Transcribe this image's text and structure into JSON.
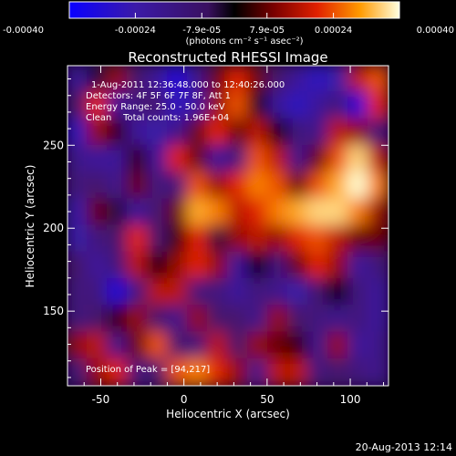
{
  "chart_data": {
    "type": "heatmap",
    "title": "Reconstructed RHESSI Image",
    "xlabel": "Heliocentric X (arcsec)",
    "ylabel": "Heliocentric Y (arcsec)",
    "xlim": [
      -70,
      123
    ],
    "ylim": [
      105,
      298
    ],
    "x_ticks": [
      -50,
      0,
      50,
      100
    ],
    "y_ticks": [
      150,
      200,
      250
    ],
    "colorbar": {
      "unit_label": "(photons cm⁻² s⁻¹ asec⁻²)",
      "range": [
        -0.0004,
        0.0004
      ],
      "tick_labels": [
        "-0.00040",
        "-0.00024",
        "-7.9e-05",
        "7.9e-05",
        "0.00024",
        "0.00040"
      ]
    },
    "annotations": [
      "1-Aug-2011 12:36:48.000 to 12:40:26.000",
      "Detectors: 4F 5F 6F 7F 8F, Att 1",
      "Energy Range: 25.0 - 50.0 keV",
      "Clean    Total counts: 1.96E+04"
    ],
    "peak_label": "Position of Peak = [94,217]",
    "peak": [
      94,
      217
    ],
    "map_values": [
      [
        -0.5,
        -0.1,
        0.3,
        -0.2,
        -0.5,
        -0.8,
        -0.4,
        0.2,
        0.5,
        0.2,
        -0.2,
        -0.5,
        -0.7,
        -0.6,
        0.4,
        0.6
      ],
      [
        -0.2,
        0.5,
        -0.5,
        -0.3,
        -0.2,
        -0.7,
        -0.5,
        0.3,
        0.6,
        0.0,
        -0.5,
        -0.7,
        -0.5,
        -0.3,
        -0.8,
        0.5
      ],
      [
        -0.7,
        0.3,
        0.1,
        -0.5,
        -0.6,
        -0.4,
        0.2,
        0.5,
        0.2,
        0.4,
        0.0,
        -0.3,
        -0.4,
        0.4,
        0.3,
        -0.3
      ],
      [
        -0.4,
        -0.5,
        -0.5,
        0.1,
        -0.5,
        0.5,
        0.2,
        -0.5,
        -0.3,
        0.6,
        0.4,
        -0.4,
        0.2,
        0.6,
        0.9,
        0.4
      ],
      [
        -0.3,
        -0.2,
        -0.4,
        0.2,
        -0.3,
        -0.3,
        0.6,
        0.3,
        0.5,
        0.7,
        0.6,
        0.2,
        0.6,
        0.8,
        1.0,
        0.7
      ],
      [
        -0.6,
        0.2,
        -0.1,
        -0.5,
        -0.2,
        0.2,
        0.8,
        0.7,
        0.4,
        0.5,
        0.7,
        0.8,
        0.9,
        0.9,
        0.7,
        0.3
      ],
      [
        -0.6,
        -0.3,
        -0.2,
        0.5,
        -0.2,
        0.1,
        0.5,
        -0.1,
        0.3,
        0.4,
        0.3,
        0.5,
        0.6,
        0.4,
        0.2,
        0.2
      ],
      [
        -0.2,
        -0.5,
        -0.3,
        0.4,
        0.0,
        0.3,
        0.5,
        0.3,
        -0.5,
        0.0,
        -0.3,
        0.2,
        0.5,
        0.3,
        -0.5,
        -0.3
      ],
      [
        -0.3,
        -0.3,
        -0.8,
        -0.3,
        0.4,
        0.4,
        -0.3,
        -0.3,
        -0.5,
        -0.3,
        -0.4,
        -0.6,
        -0.2,
        0.0,
        -0.3,
        -0.5
      ],
      [
        -0.3,
        -0.2,
        0.1,
        0.3,
        -0.2,
        -0.4,
        0.3,
        -0.2,
        -0.2,
        -0.4,
        0.3,
        -0.2,
        -0.3,
        -0.4,
        -0.3,
        -0.5
      ],
      [
        0.3,
        0.4,
        -0.4,
        0.2,
        0.6,
        -0.2,
        -0.3,
        0.4,
        -0.2,
        0.3,
        0.2,
        0.1,
        -0.4,
        0.3,
        -0.5,
        -0.4
      ],
      [
        -0.3,
        0.3,
        0.5,
        -0.3,
        -0.2,
        0.6,
        0.7,
        0.5,
        0.3,
        -0.4,
        0.4,
        0.4,
        -0.3,
        -0.2,
        -0.3,
        -0.4
      ]
    ]
  },
  "footer": {
    "date": "20-Aug-2013 12:14"
  }
}
